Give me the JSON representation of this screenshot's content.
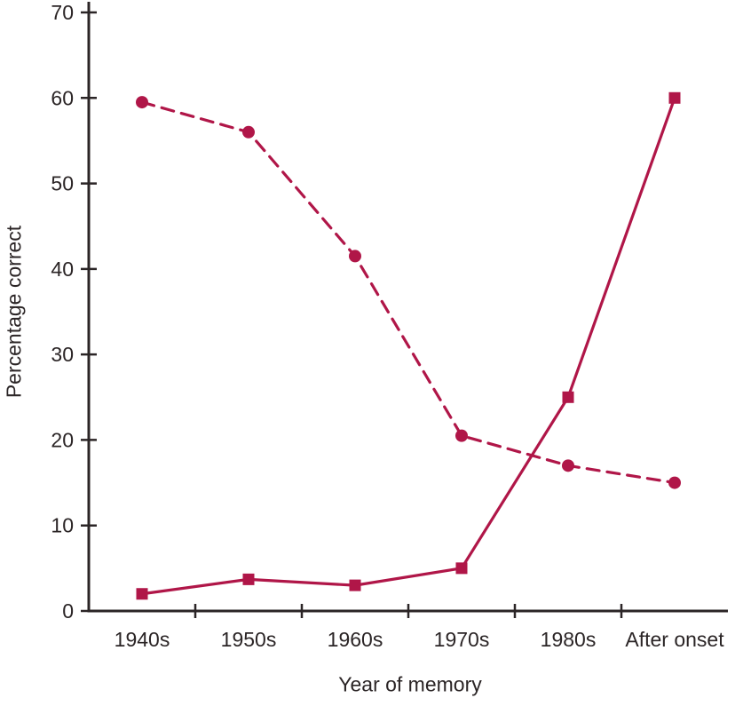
{
  "chart_data": {
    "type": "line",
    "title": "",
    "xlabel": "Year of memory",
    "ylabel": "Percentage correct",
    "categories": [
      "1940s",
      "1950s",
      "1960s",
      "1970s",
      "1980s",
      "After onset"
    ],
    "ylim": [
      0,
      70
    ],
    "yticks": [
      0,
      10,
      20,
      30,
      40,
      50,
      60,
      70
    ],
    "grid": false,
    "legend": "none",
    "series": [
      {
        "name": "dashed line with circle markers",
        "line": "dashed",
        "marker": "circle",
        "values": [
          59.5,
          56,
          41.5,
          20.5,
          17,
          15
        ]
      },
      {
        "name": "solid line with square markers",
        "line": "solid",
        "marker": "square",
        "values": [
          2,
          3.7,
          3,
          5,
          25,
          60
        ]
      }
    ],
    "colors": {
      "series": "#b01648",
      "axis": "#2b2526",
      "text": "#2b2526"
    }
  }
}
